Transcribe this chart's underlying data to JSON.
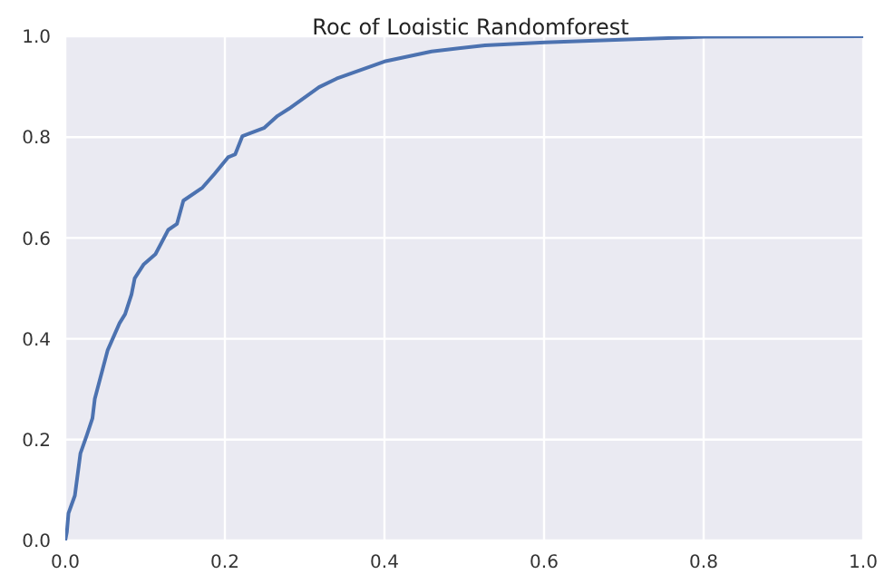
{
  "chart_data": {
    "type": "line",
    "title": "Roc of Logistic Randomforest",
    "x": [
      0,
      0.002,
      0.004,
      0.012,
      0.019,
      0.027,
      0.034,
      0.037,
      0.053,
      0.068,
      0.075,
      0.083,
      0.087,
      0.098,
      0.113,
      0.129,
      0.14,
      0.148,
      0.172,
      0.187,
      0.204,
      0.213,
      0.222,
      0.249,
      0.266,
      0.28,
      0.318,
      0.34,
      0.4,
      0.459,
      0.526,
      0.601,
      0.713,
      0.802,
      1
    ],
    "series": [
      {
        "color": "#4c72b0",
        "values": [
          0,
          0.017,
          0.054,
          0.089,
          0.173,
          0.209,
          0.242,
          0.281,
          0.377,
          0.431,
          0.449,
          0.488,
          0.52,
          0.547,
          0.568,
          0.616,
          0.628,
          0.674,
          0.7,
          0.727,
          0.76,
          0.766,
          0.802,
          0.818,
          0.842,
          0.856,
          0.899,
          0.916,
          0.95,
          0.97,
          0.982,
          0.988,
          0.994,
          0.999,
          1
        ]
      }
    ],
    "xlim": [
      0,
      1
    ],
    "ylim": [
      0,
      1
    ],
    "xticks": [
      {
        "value": 0,
        "label": "0.0"
      },
      0.2,
      0.4,
      0.6,
      0.8,
      {
        "value": 1,
        "label": "1.0"
      }
    ],
    "yticks": [
      {
        "value": 0,
        "label": "0.0"
      },
      0.2,
      0.4,
      0.6,
      0.8,
      {
        "value": 1,
        "label": "1.0"
      }
    ],
    "grid": true
  }
}
